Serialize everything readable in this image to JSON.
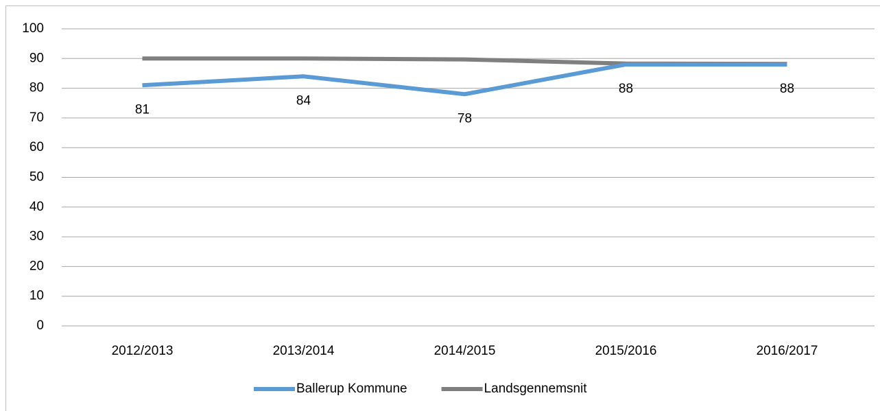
{
  "chart_data": {
    "type": "line",
    "categories": [
      "2012/2013",
      "2013/2014",
      "2014/2015",
      "2015/2016",
      "2016/2017"
    ],
    "series": [
      {
        "name": "Ballerup Kommune",
        "color": "#5b9bd5",
        "values": [
          81,
          84,
          78,
          88,
          88
        ],
        "data_labels": true
      },
      {
        "name": "Landsgennemsnit",
        "color": "#7f7f7f",
        "values": [
          90,
          90,
          89.7,
          88.3,
          88.2
        ]
      }
    ],
    "ylim": [
      0,
      100
    ],
    "yticks": [
      0,
      10,
      20,
      30,
      40,
      50,
      60,
      70,
      80,
      90,
      100
    ],
    "grid": true,
    "legend": "bottom"
  }
}
